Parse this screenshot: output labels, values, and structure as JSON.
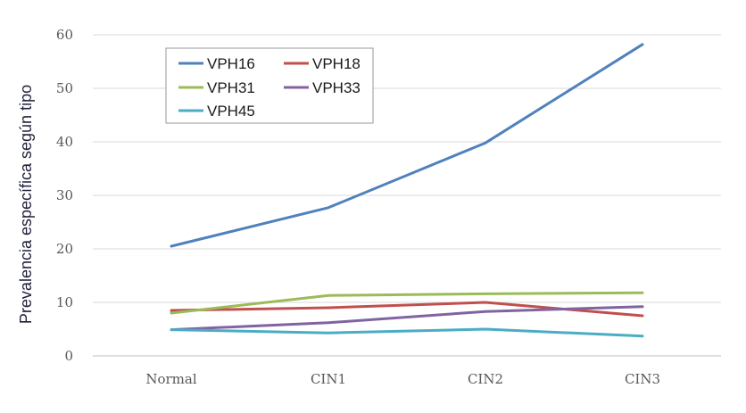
{
  "chart_data": {
    "type": "line",
    "title": "",
    "xlabel": "",
    "ylabel": "Prevalencia específica según tipo",
    "categories": [
      "Normal",
      "CIN1",
      "CIN2",
      "CIN3"
    ],
    "ylim": [
      0,
      60
    ],
    "yticks": [
      0,
      10,
      20,
      30,
      40,
      50,
      60
    ],
    "grid": true,
    "legend_position": "top-left",
    "series": [
      {
        "name": "VPH16",
        "color": "#4f81bd",
        "values": [
          20.5,
          27.7,
          39.8,
          58.2
        ]
      },
      {
        "name": "VPH18",
        "color": "#c0504d",
        "values": [
          8.5,
          9.0,
          10.0,
          7.5
        ]
      },
      {
        "name": "VPH31",
        "color": "#9bbb59",
        "values": [
          8.0,
          11.3,
          11.6,
          11.8
        ]
      },
      {
        "name": "VPH33",
        "color": "#8064a2",
        "values": [
          4.9,
          6.2,
          8.3,
          9.2
        ]
      },
      {
        "name": "VPH45",
        "color": "#4bacc6",
        "values": [
          4.9,
          4.3,
          5.0,
          3.7
        ]
      }
    ]
  }
}
